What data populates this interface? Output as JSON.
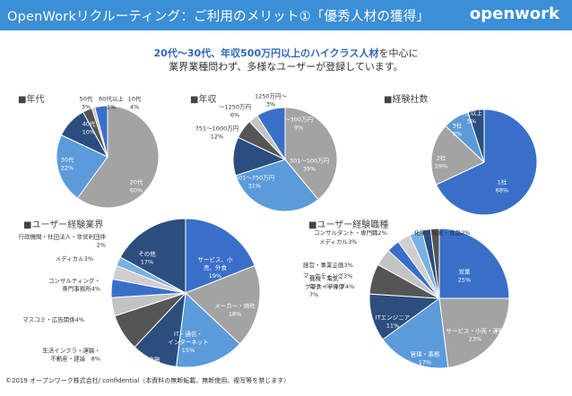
{
  "header": {
    "title": "OpenWorkリクルーティング：ご利用のメリット①「優秀人材の獲得」",
    "logo": "openwork"
  },
  "lead": {
    "line1_accent": "20代〜30代、年収500万円以上のハイクラス人材",
    "line1_rest": "を中心に",
    "line2": "業界業種問わず、多様なユーザーが登録しています。"
  },
  "footer": "©2019 オープンワーク株式会社/ confidential（本資料の無断転載、無断使用、複写等を禁じます）",
  "chart_data": [
    {
      "type": "pie",
      "title": "■年代",
      "slices": [
        {
          "label": "20代",
          "value": 60,
          "color": "#a3a3a3"
        },
        {
          "label": "30代",
          "value": 22,
          "color": "#5b9bd9"
        },
        {
          "label": "40代",
          "value": 10,
          "color": "#2b4e7e"
        },
        {
          "label": "50代",
          "value": 3,
          "color": "#555555"
        },
        {
          "label": "60代以上",
          "value": 1,
          "color": "#c3c3c3"
        },
        {
          "label": "10代",
          "value": 4,
          "color": "#3a6fc9"
        }
      ]
    },
    {
      "type": "pie",
      "title": "■年収",
      "slices": [
        {
          "label": "301〜500万円",
          "value": 39,
          "color": "#a3a3a3"
        },
        {
          "label": "501〜750万円",
          "value": 31,
          "color": "#5b9bd9"
        },
        {
          "label": "751〜1000万円",
          "value": 12,
          "color": "#2b4e7e"
        },
        {
          "label": "〜1250万円",
          "value": 6,
          "color": "#555555"
        },
        {
          "label": "1250万円〜",
          "value": 3,
          "color": "#c3c3c3"
        },
        {
          "label": "〜300万円",
          "value": 9,
          "color": "#3a6fc9"
        }
      ]
    },
    {
      "type": "pie",
      "title": "■経験社数",
      "slices": [
        {
          "label": "1社",
          "value": 68,
          "color": "#3a6fc9"
        },
        {
          "label": "2社",
          "value": 19,
          "color": "#a3a3a3"
        },
        {
          "label": "3社",
          "value": 8,
          "color": "#5b9bd9"
        },
        {
          "label": "4社以上",
          "value": 5,
          "color": "#2b4e7e"
        }
      ]
    },
    {
      "type": "pie",
      "title": "■ユーザー経験業界",
      "slices": [
        {
          "label": "サービス、小売、外食",
          "value": 19,
          "color": "#3a6fc9"
        },
        {
          "label": "メーカー・商社",
          "value": 18,
          "color": "#a3a3a3"
        },
        {
          "label": "IT・通信・インターネット",
          "value": 15,
          "color": "#5b9bd9"
        },
        {
          "label": "金融",
          "value": 10,
          "color": "#2b4e7e"
        },
        {
          "label": "生活インフラ・運輸・不動産・建設",
          "value": 8,
          "color": "#555555"
        },
        {
          "label": "マスコミ・広告関係",
          "value": 4,
          "color": "#c3c3c3"
        },
        {
          "label": "コンサルティング・専門事務所",
          "value": 4,
          "color": "#3a6fc9"
        },
        {
          "label": "メディカル",
          "value": 3,
          "color": "#cfcfcf"
        },
        {
          "label": "行政機関・社団法人・非営利団体",
          "value": 2,
          "color": "#7ab0e2"
        },
        {
          "label": "その他",
          "value": 17,
          "color": "#2b4e7e"
        }
      ]
    },
    {
      "type": "pie",
      "title": "■ユーザー経験職種",
      "slices": [
        {
          "label": "営業",
          "value": 25,
          "color": "#3a6fc9"
        },
        {
          "label": "サービス・小売・運輸",
          "value": 23,
          "color": "#a3a3a3"
        },
        {
          "label": "管理・事務",
          "value": 17,
          "color": "#5b9bd9"
        },
        {
          "label": "ITエンジニア",
          "value": 11,
          "color": "#2b4e7e"
        },
        {
          "label": "機械・電気・電子・半導体",
          "value": 7,
          "color": "#555555"
        },
        {
          "label": "クリエイティブ",
          "value": 4,
          "color": "#c3c3c3"
        },
        {
          "label": "マーケティング",
          "value": 3,
          "color": "#3a6fc9"
        },
        {
          "label": "経営・事業企画",
          "value": 3,
          "color": "#cfcfcf"
        },
        {
          "label": "メディカル",
          "value": 3,
          "color": "#7ab0e2"
        },
        {
          "label": "コンサルタント・専門職",
          "value": 2,
          "color": "#2b4e7e"
        },
        {
          "label": "化学・繊維・食品",
          "value": 2,
          "color": "#555555"
        }
      ]
    }
  ]
}
